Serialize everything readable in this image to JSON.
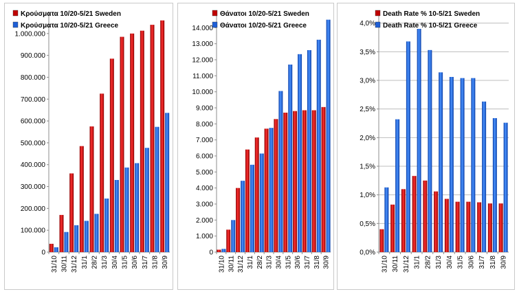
{
  "chart_data": [
    {
      "type": "bar",
      "categories": [
        "31/10",
        "30/11",
        "31/12",
        "31/1",
        "28/2",
        "31/3",
        "30/4",
        "31/5",
        "30/6",
        "31/7",
        "31/8",
        "30/9"
      ],
      "series": [
        {
          "name": "Κρούσματα 10/20-5/21 Sweden",
          "color": "#c00000",
          "values": [
            38000,
            170000,
            360000,
            485000,
            575000,
            725000,
            885000,
            985000,
            1000000,
            1013000,
            1040000,
            1060000
          ]
        },
        {
          "name": "Κρούσματα 10/20-5/21 Greece",
          "color": "#1f5fd6",
          "values": [
            22000,
            92000,
            123000,
            143000,
            175000,
            245000,
            330000,
            387000,
            407000,
            477000,
            573000,
            637000
          ]
        }
      ],
      "ylim": [
        0,
        1100000
      ],
      "yticks": [
        "0",
        "100.000",
        "200.000",
        "300.000",
        "400.000",
        "500.000",
        "600.000",
        "700.000",
        "800.000",
        "900.000",
        "1.000.000"
      ],
      "grid": false,
      "legend": "top-left"
    },
    {
      "type": "bar",
      "categories": [
        "31/10",
        "30/11",
        "31/12",
        "31/1",
        "28/2",
        "31/3",
        "30/4",
        "31/5",
        "30/6",
        "31/7",
        "31/8",
        "30/9"
      ],
      "series": [
        {
          "name": "Θάνατοι 10/20-5/21 Sweden",
          "color": "#c00000",
          "values": [
            150,
            1400,
            4000,
            6400,
            7150,
            7700,
            8300,
            8700,
            8800,
            8850,
            8850,
            9050
          ]
        },
        {
          "name": "Θάνατοι 10/20-5/21 Greece",
          "color": "#1f5fd6",
          "values": [
            200,
            2000,
            4450,
            5450,
            6150,
            7750,
            10050,
            11700,
            12350,
            12600,
            13250,
            14500
          ]
        }
      ],
      "ylim": [
        0,
        15000
      ],
      "yticks": [
        "0",
        "1.000",
        "2.000",
        "3.000",
        "4.000",
        "5.000",
        "6.000",
        "7.000",
        "8.000",
        "9.000",
        "10.000",
        "11.000",
        "12.000",
        "13.000",
        "14.000"
      ],
      "grid": false,
      "legend": "top-left"
    },
    {
      "type": "bar",
      "categories": [
        "31/10",
        "30/11",
        "31/12",
        "31/1",
        "28/2",
        "31/3",
        "30/4",
        "31/5",
        "30/6",
        "31/7",
        "31/8",
        "30/9"
      ],
      "series": [
        {
          "name": "Death Rate % 10-5/21 Sweden",
          "color": "#c00000",
          "values": [
            0.4,
            0.83,
            1.1,
            1.33,
            1.25,
            1.06,
            0.93,
            0.88,
            0.88,
            0.87,
            0.85,
            0.85
          ]
        },
        {
          "name": "Death Rate % 10-5/21 Greece",
          "color": "#1f5fd6",
          "values": [
            1.13,
            2.32,
            3.68,
            3.9,
            3.53,
            3.14,
            3.06,
            3.04,
            3.04,
            2.63,
            2.34,
            2.26
          ]
        }
      ],
      "ylim": [
        0,
        4.2
      ],
      "yticks": [
        "0,0%",
        "0,5%",
        "1,0%",
        "1,5%",
        "2,0%",
        "2,5%",
        "3,0%",
        "3,5%",
        "4,0%"
      ],
      "grid": true,
      "legend": "top-center"
    }
  ]
}
